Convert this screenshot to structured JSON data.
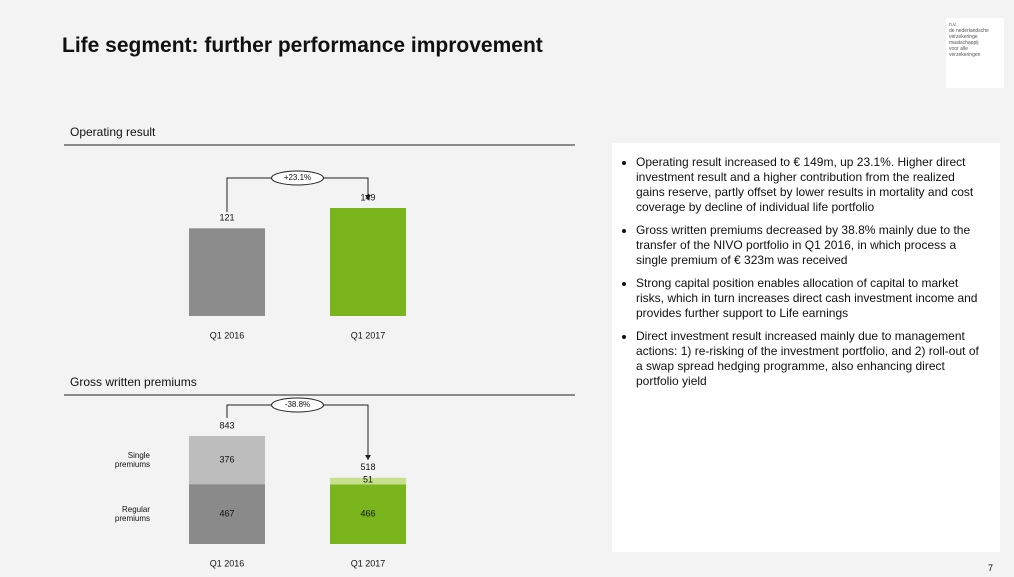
{
  "title": "Life segment: further performance improvement",
  "logo": [
    "n.v.",
    "de nederlandsche",
    "verzekeringe",
    "maatschappij",
    "voor alle",
    "verzekeringen"
  ],
  "chart_data": [
    {
      "type": "bar",
      "title": "Operating result",
      "categories": [
        "Q1 2016",
        "Q1 2017"
      ],
      "values": [
        121,
        149
      ],
      "colors": [
        "#8c8c8c",
        "#7ab51d"
      ],
      "annotation": "+23.1%"
    },
    {
      "type": "stacked_bar",
      "title": "Gross written premiums",
      "categories": [
        "Q1 2016",
        "Q1 2017"
      ],
      "series": [
        {
          "name": "Regular premiums",
          "colors": [
            "#8a8a8a",
            "#7ab51d"
          ],
          "values": [
            467,
            466
          ]
        },
        {
          "name": "Single premiums",
          "colors": [
            "#bdbdbd",
            "#c6e08e"
          ],
          "values": [
            376,
            51
          ]
        }
      ],
      "totals": [
        843,
        518
      ],
      "annotation": "-38.8%"
    }
  ],
  "bullets": [
    "Operating result increased to € 149m, up 23.1%. Higher direct investment result and a higher contribution from the realized gains reserve, partly offset by lower results in mortality and cost coverage by decline of individual life portfolio",
    "Gross written premiums decreased by 38.8% mainly due to the transfer of the NIVO portfolio in Q1 2016, in which process a single premium of € 323m was received",
    "Strong capital position enables allocation of capital to market risks, which in turn increases direct cash investment income and provides further support to Life earnings",
    "Direct investment result increased mainly due to management actions: 1) re-risking of the investment portfolio, and 2) roll-out of a swap spread hedging programme, also enhancing direct portfolio yield"
  ],
  "page_number": "7"
}
